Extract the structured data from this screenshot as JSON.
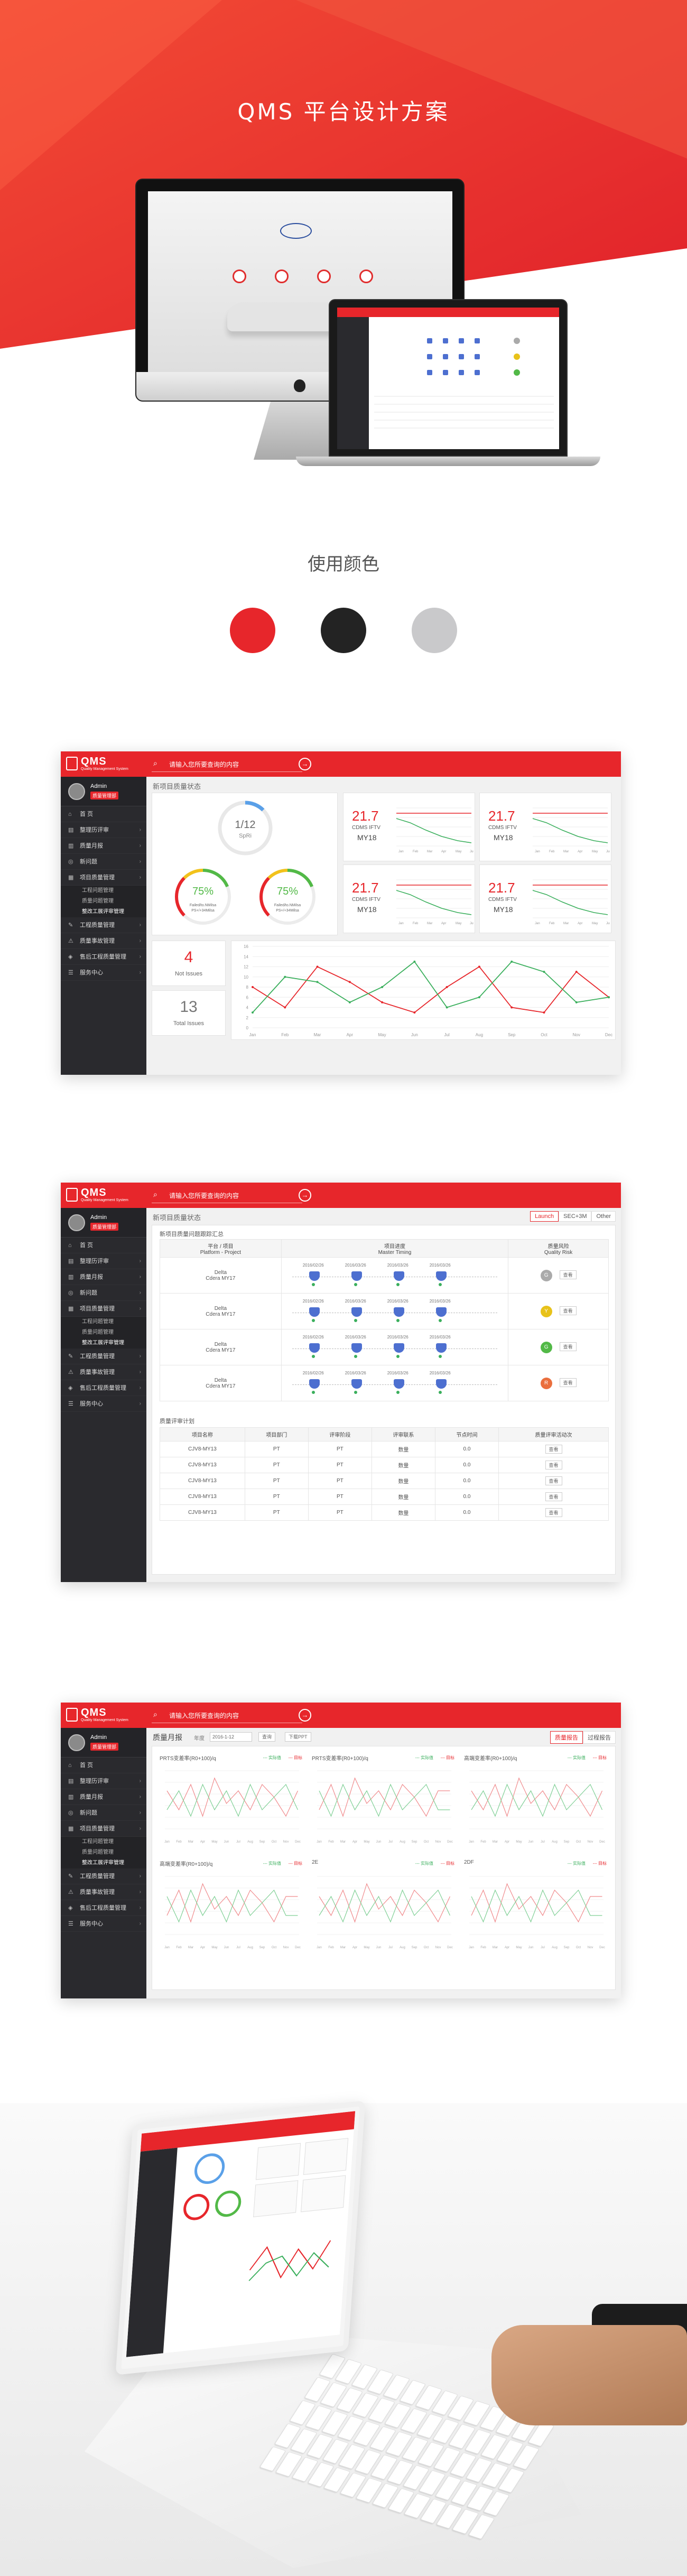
{
  "hero": {
    "title": "QMS 平台设计方案",
    "bg_color": "#e93a2f"
  },
  "colors_section": {
    "title": "使用颜色",
    "swatches": [
      "#e7262b",
      "#232323",
      "#c9c9cb"
    ]
  },
  "app": {
    "logo_name": "QMS",
    "logo_sub": "Quality Management System",
    "search_placeholder": "请输入您所要查询的内容",
    "user_name": "Admin",
    "user_badge": "质量管理部",
    "menu": [
      {
        "label": "首 页",
        "icon": "home-icon"
      },
      {
        "label": "整理历评审",
        "icon": "doc-icon"
      },
      {
        "label": "质量月报",
        "icon": "report-icon"
      },
      {
        "label": "新问题",
        "icon": "problem-icon"
      },
      {
        "label": "项目质量管理",
        "icon": "project-icon"
      }
    ],
    "submenu": [
      "工程问题管理",
      "质量问题管理",
      "整改工展评审管理"
    ],
    "menu_rest": [
      {
        "label": "工程质量管理",
        "icon": "wrench-icon"
      },
      {
        "label": "质量事故管理",
        "icon": "incident-icon"
      },
      {
        "label": "售后工程质量管理",
        "icon": "service-icon"
      },
      {
        "label": "服务中心",
        "icon": "center-icon"
      }
    ]
  },
  "dashboard": {
    "title": "新项目质量状态",
    "ring_value": "1/12",
    "ring_label": "SpRi",
    "gauges": [
      {
        "value": "75%",
        "l1": "Failed/to.NMilsa",
        "l2": "PS+/+34Milsa",
        "fraction": 0.75
      },
      {
        "value": "75%",
        "l1": "Failed/to.NMilsa",
        "l2": "PS+/+34Milsa",
        "fraction": 0.75
      }
    ],
    "mini_charts": [
      {
        "value": "21.7",
        "sub": "CDMS IFTV",
        "year": "MY18"
      },
      {
        "value": "21.7",
        "sub": "CDMS IFTV",
        "year": "MY18"
      },
      {
        "value": "21.7",
        "sub": "CDMS IFTV",
        "year": "MY18"
      },
      {
        "value": "21.7",
        "sub": "CDMS IFTV",
        "year": "MY18"
      }
    ],
    "kpis": [
      {
        "value": "4",
        "label": "Not Issues",
        "color": "#e7262b"
      },
      {
        "value": "13",
        "label": "Total Issues",
        "color": "#777777"
      }
    ],
    "months": [
      "Jan",
      "Feb",
      "Mar",
      "Apr",
      "May",
      "Jun",
      "Jul",
      "Aug",
      "Sep",
      "Oct",
      "Nov",
      "Dec"
    ],
    "chart_data": {
      "type": "line",
      "categories": [
        "Jan",
        "Feb",
        "Mar",
        "Apr",
        "May",
        "Jun",
        "Jul",
        "Aug",
        "Sep",
        "Oct",
        "Nov",
        "Dec"
      ],
      "ylim": [
        0,
        16
      ],
      "yticks": [
        0,
        2,
        4,
        6,
        8,
        10,
        12,
        14,
        16
      ],
      "series": [
        {
          "name": "",
          "color": "#e7262b",
          "values": [
            8,
            4,
            12,
            9,
            5,
            3,
            8,
            12,
            4,
            3,
            11,
            6
          ]
        },
        {
          "name": "",
          "color": "#3aaf5c",
          "values": [
            3,
            10,
            9,
            5,
            8,
            13,
            4,
            6,
            13,
            11,
            5,
            6
          ]
        }
      ]
    }
  },
  "quality": {
    "title": "新项目质量状态",
    "tabs": [
      "Launch",
      "SEC+3M",
      "Other"
    ],
    "table_title": "新项目质量问题跟踪汇总",
    "cols": [
      "平台 / 项目\nPlatform - Project",
      "项目进度\nMaster Timing",
      "质量风险\nQuality Risk"
    ],
    "rows": [
      {
        "project": "Delta",
        "model": "Cdera MY17",
        "risk": "G",
        "risk_color": "#aaaaaa"
      },
      {
        "project": "Delta",
        "model": "Cdera MY17",
        "risk": "Y",
        "risk_color": "#e8c21a"
      },
      {
        "project": "Delta",
        "model": "Cdera MY17",
        "risk": "G",
        "risk_color": "#52b947"
      },
      {
        "project": "Delta",
        "model": "Cdera MY17",
        "risk": "R",
        "risk_color": "#ea6f3e"
      }
    ],
    "milestones": [
      "2016/02/26",
      "2016/03/26",
      "2016/03/26",
      "2016/03/26"
    ],
    "view_btn": "查看",
    "plan_title": "质量评审计划",
    "plan_cols": [
      "项目名称",
      "项目部门",
      "评审阶段",
      "评审联系",
      "节点时间",
      "质量评审活动次"
    ],
    "plan_rows": [
      [
        "CJV8-MY13",
        "PT",
        "PT",
        "数量",
        "0.0",
        "查看"
      ],
      [
        "CJV8-MY13",
        "PT",
        "PT",
        "数量",
        "0.0",
        "查看"
      ],
      [
        "CJV8-MY13",
        "PT",
        "PT",
        "数量",
        "0.0",
        "查看"
      ],
      [
        "CJV8-MY13",
        "PT",
        "PT",
        "数量",
        "0.0",
        "查看"
      ],
      [
        "CJV8-MY13",
        "PT",
        "PT",
        "数量",
        "0.0",
        "查看"
      ]
    ]
  },
  "monthly": {
    "title": "质量月报",
    "filter_label": "年度",
    "filter_value": "2016-1-12",
    "filter2": "查询",
    "filter3": "下载PPT",
    "tabs": [
      "质量报告",
      "过程报告"
    ],
    "charts": [
      {
        "title": "PRTS变差率(R0+100)/q"
      },
      {
        "title": "PRTS变差率(R0+100)/q"
      },
      {
        "title": "高端变差率(R0+100)/q"
      },
      {
        "title": "高端变差率(R0+100)/q"
      },
      {
        "title": "2E"
      },
      {
        "title": "2DF"
      }
    ],
    "legend": [
      "--- 实际值",
      "--- 目标"
    ]
  }
}
